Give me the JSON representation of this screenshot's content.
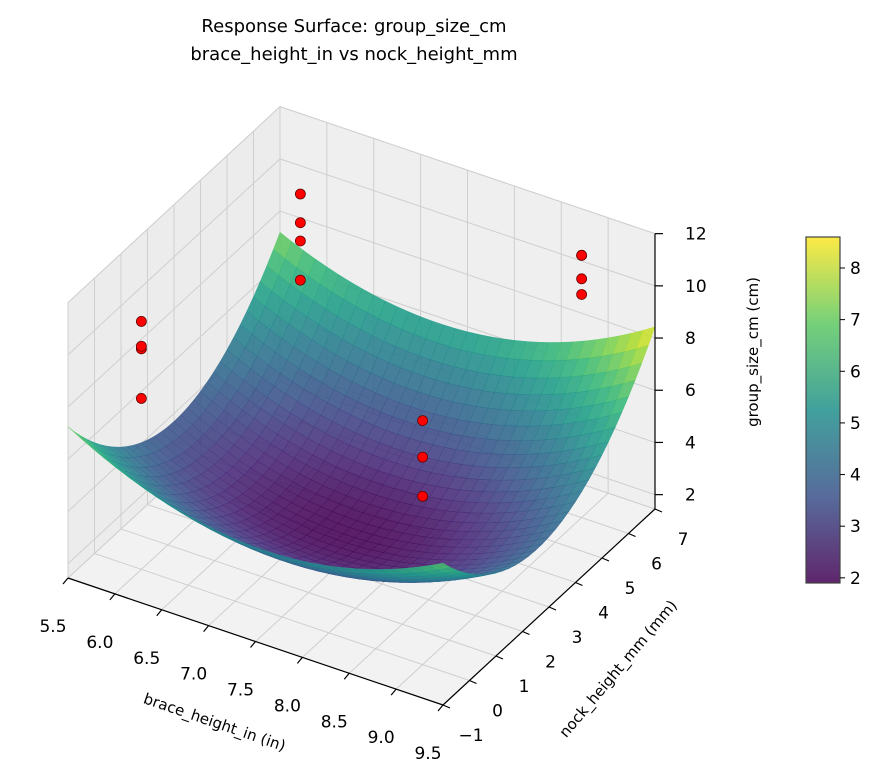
{
  "chart_data": {
    "type": "surface3d",
    "title": "Response Surface: group_size_cm",
    "subtitle": "brace_height_in vs nock_height_mm",
    "xlabel": "brace_height_in (in)",
    "ylabel": "nock_height_mm (mm)",
    "zlabel": "group_size_cm (cm)",
    "xlim": [
      5.5,
      9.5
    ],
    "ylim": [
      -1,
      7
    ],
    "zlim": [
      1.45,
      12
    ],
    "xticks": [
      "5.5",
      "6.0",
      "6.5",
      "7.0",
      "7.5",
      "8.0",
      "8.5",
      "9.0",
      "9.5"
    ],
    "yticks": [
      "−1",
      "0",
      "1",
      "2",
      "3",
      "4",
      "5",
      "6",
      "7"
    ],
    "zticks": [
      "2",
      "4",
      "6",
      "8",
      "10",
      "12"
    ],
    "grid": true,
    "colormap": "viridis",
    "surface": {
      "model": "quadratic",
      "minimum": {
        "x": 7.4,
        "y": 2.8,
        "z": 1.9
      },
      "coef_xx": 0.5,
      "coef_yy": 0.22,
      "coef_xy": 0.05
    },
    "points_color": "#ff0000",
    "points": [
      {
        "x": 6,
        "y": 0,
        "z": 8.0
      },
      {
        "x": 6,
        "y": 0,
        "z": 9.9
      },
      {
        "x": 6,
        "y": 0,
        "z": 10.0
      },
      {
        "x": 6,
        "y": 0,
        "z": 10.95
      },
      {
        "x": 6,
        "y": 6,
        "z": 6.9
      },
      {
        "x": 6,
        "y": 6,
        "z": 8.4
      },
      {
        "x": 6,
        "y": 6,
        "z": 9.1
      },
      {
        "x": 6,
        "y": 6,
        "z": 10.2
      },
      {
        "x": 9,
        "y": 0,
        "z": 7.9
      },
      {
        "x": 9,
        "y": 0,
        "z": 9.4
      },
      {
        "x": 9,
        "y": 0,
        "z": 10.8
      },
      {
        "x": 9,
        "y": 6,
        "z": 10.0
      },
      {
        "x": 9,
        "y": 6,
        "z": 10.6
      },
      {
        "x": 9,
        "y": 6,
        "z": 11.5
      },
      {
        "x": 9,
        "y": 6,
        "z": 11.5
      }
    ],
    "colorbar": {
      "range": [
        1.9,
        8.6
      ],
      "ticks": [
        "2",
        "3",
        "4",
        "5",
        "6",
        "7",
        "8"
      ]
    }
  }
}
